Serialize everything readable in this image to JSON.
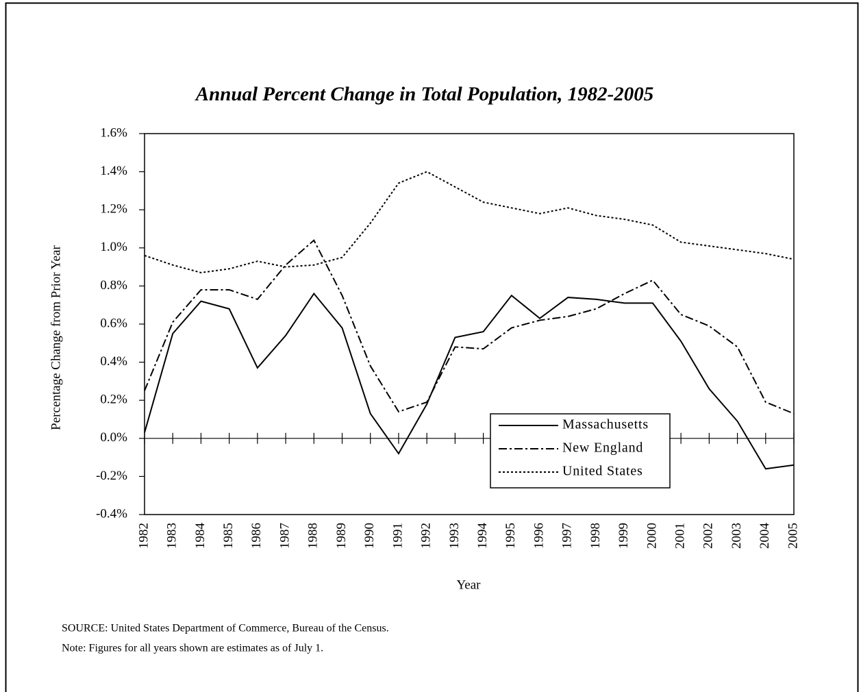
{
  "chart_data": {
    "type": "line",
    "title": "Annual Percent Change in Total Population, 1982-2005",
    "x_label": "Year",
    "y_label": "Percentage Change from Prior Year",
    "categories": [
      "1982",
      "1983",
      "1984",
      "1985",
      "1986",
      "1987",
      "1988",
      "1989",
      "1990",
      "1991",
      "1992",
      "1993",
      "1994",
      "1995",
      "1996",
      "1997",
      "1998",
      "1999",
      "2000",
      "2001",
      "2002",
      "2003",
      "2004",
      "2005"
    ],
    "series": [
      {
        "name": "Massachusetts",
        "color": "#000000",
        "dash": "none",
        "values": [
          0.03,
          0.55,
          0.72,
          0.68,
          0.37,
          0.54,
          0.76,
          0.58,
          0.13,
          -0.08,
          0.18,
          0.53,
          0.56,
          0.75,
          0.63,
          0.74,
          0.73,
          0.71,
          0.71,
          0.51,
          0.26,
          0.09,
          -0.16,
          -0.14
        ]
      },
      {
        "name": "New England",
        "color": "#000000",
        "dash": "12,4,3,4",
        "values": [
          0.25,
          0.61,
          0.78,
          0.78,
          0.73,
          0.91,
          1.04,
          0.75,
          0.38,
          0.14,
          0.19,
          0.48,
          0.47,
          0.58,
          0.62,
          0.64,
          0.68,
          0.76,
          0.83,
          0.65,
          0.59,
          0.48,
          0.19,
          0.13
        ]
      },
      {
        "name": "United States",
        "color": "#000000",
        "dash": "3,3",
        "values": [
          0.96,
          0.91,
          0.87,
          0.89,
          0.93,
          0.9,
          0.91,
          0.95,
          1.13,
          1.34,
          1.4,
          1.32,
          1.24,
          1.21,
          1.18,
          1.21,
          1.17,
          1.15,
          1.12,
          1.03,
          1.01,
          0.99,
          0.97,
          0.94
        ]
      }
    ],
    "ylim": [
      -0.4,
      1.6
    ],
    "yticks": [
      {
        "value": -0.4,
        "label": "-0.4%"
      },
      {
        "value": -0.2,
        "label": "-0.2%"
      },
      {
        "value": 0,
        "label": "0.0%"
      },
      {
        "value": 0.2,
        "label": "0.2%"
      },
      {
        "value": 0.4,
        "label": "0.4%"
      },
      {
        "value": 0.6,
        "label": "0.6%"
      },
      {
        "value": 0.8,
        "label": "0.8%"
      },
      {
        "value": 1.0,
        "label": "1.0%"
      },
      {
        "value": 1.2,
        "label": "1.2%"
      },
      {
        "value": 1.4,
        "label": "1.4%"
      },
      {
        "value": 1.6,
        "label": "1.6%"
      }
    ],
    "notes": [
      "SOURCE:  United States Department of Commerce, Bureau of the Census.",
      "Note:  Figures for all years shown are estimates as of July 1."
    ]
  }
}
